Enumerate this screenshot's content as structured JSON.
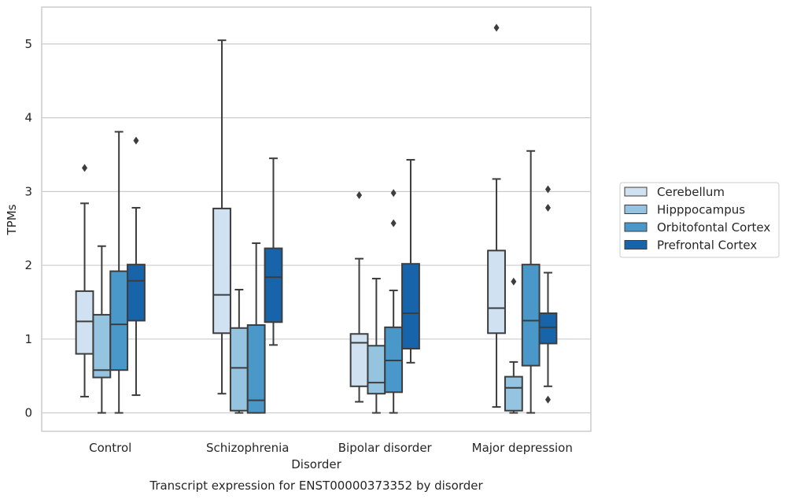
{
  "chart_data": {
    "type": "boxplot",
    "title": "Transcript expression for ENST00000373352 by disorder",
    "xlabel": "Disorder",
    "ylabel": "TPMs",
    "ylim": [
      -0.25,
      5.5
    ],
    "yticks": [
      0,
      1,
      2,
      3,
      4,
      5
    ],
    "grid": true,
    "legend_position": "right",
    "categories": [
      "Control",
      "Schizophrenia",
      "Bipolar disorder",
      "Major depression"
    ],
    "series": [
      {
        "name": "Cerebellum",
        "color": "#d0e1f2",
        "boxes": [
          {
            "whislo": 0.22,
            "q1": 0.8,
            "med": 1.24,
            "q3": 1.65,
            "whishi": 2.84,
            "fliers": [
              3.32
            ]
          },
          {
            "whislo": 0.26,
            "q1": 1.08,
            "med": 1.6,
            "q3": 2.77,
            "whishi": 5.05,
            "fliers": []
          },
          {
            "whislo": 0.15,
            "q1": 0.36,
            "med": 0.95,
            "q3": 1.07,
            "whishi": 2.09,
            "fliers": [
              2.95
            ]
          },
          {
            "whislo": 0.08,
            "q1": 1.08,
            "med": 1.42,
            "q3": 2.2,
            "whishi": 3.17,
            "fliers": [
              5.22
            ]
          }
        ]
      },
      {
        "name": "Hipppocampus",
        "color": "#94c4df",
        "boxes": [
          {
            "whislo": 0.0,
            "q1": 0.48,
            "med": 0.58,
            "q3": 1.33,
            "whishi": 2.26,
            "fliers": []
          },
          {
            "whislo": 0.0,
            "q1": 0.03,
            "med": 0.61,
            "q3": 1.15,
            "whishi": 1.67,
            "fliers": []
          },
          {
            "whislo": 0.0,
            "q1": 0.26,
            "med": 0.41,
            "q3": 0.91,
            "whishi": 1.82,
            "fliers": []
          },
          {
            "whislo": 0.0,
            "q1": 0.03,
            "med": 0.34,
            "q3": 0.49,
            "whishi": 0.69,
            "fliers": [
              1.78
            ]
          }
        ]
      },
      {
        "name": "Orbitofontal Cortex",
        "color": "#4a98c9",
        "boxes": [
          {
            "whislo": 0.0,
            "q1": 0.58,
            "med": 1.2,
            "q3": 1.92,
            "whishi": 3.81,
            "fliers": []
          },
          {
            "whislo": 0.0,
            "q1": 0.0,
            "med": 0.17,
            "q3": 1.19,
            "whishi": 2.3,
            "fliers": []
          },
          {
            "whislo": 0.0,
            "q1": 0.28,
            "med": 0.71,
            "q3": 1.16,
            "whishi": 1.66,
            "fliers": [
              2.57,
              2.98
            ]
          },
          {
            "whislo": 0.0,
            "q1": 0.64,
            "med": 1.25,
            "q3": 2.01,
            "whishi": 3.55,
            "fliers": []
          }
        ]
      },
      {
        "name": "Prefrontal Cortex",
        "color": "#1764ab",
        "boxes": [
          {
            "whislo": 0.24,
            "q1": 1.25,
            "med": 1.79,
            "q3": 2.01,
            "whishi": 2.78,
            "fliers": [
              3.69
            ]
          },
          {
            "whislo": 0.92,
            "q1": 1.23,
            "med": 1.84,
            "q3": 2.23,
            "whishi": 3.45,
            "fliers": []
          },
          {
            "whislo": 0.68,
            "q1": 0.87,
            "med": 1.35,
            "q3": 2.02,
            "whishi": 3.43,
            "fliers": []
          },
          {
            "whislo": 0.36,
            "q1": 0.94,
            "med": 1.16,
            "q3": 1.35,
            "whishi": 1.9,
            "fliers": [
              0.18,
              2.78,
              3.03
            ]
          }
        ]
      }
    ]
  }
}
